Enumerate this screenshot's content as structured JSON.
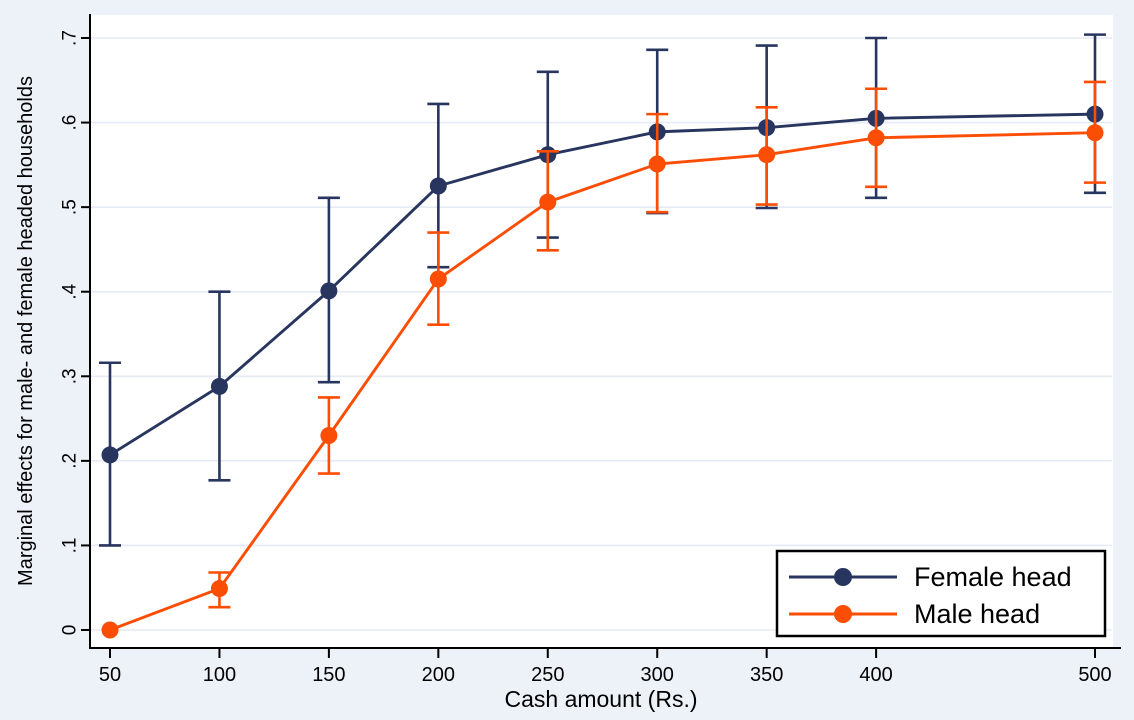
{
  "chart_data": {
    "type": "line",
    "title": "",
    "xlabel": "Cash amount (Rs.)",
    "ylabel": "Marginal effects for male- and female headed households",
    "x": [
      50,
      100,
      150,
      200,
      250,
      300,
      350,
      400,
      500
    ],
    "x_tick_labels": [
      "50",
      "100",
      "150",
      "200",
      "250",
      "300",
      "350",
      "400",
      "500"
    ],
    "y_ticks": [
      0,
      0.1,
      0.2,
      0.3,
      0.4,
      0.5,
      0.6,
      0.7
    ],
    "y_tick_labels": [
      "0",
      ".1",
      ".2",
      ".3",
      ".4",
      ".5",
      ".6",
      ".7"
    ],
    "xlim": [
      41,
      508
    ],
    "ylim": [
      0,
      0.72
    ],
    "grid": true,
    "legend_position": "bottom-right-inside",
    "error_bars": true,
    "series": [
      {
        "name": "Female head",
        "color": "#28355f",
        "values": [
          0.207,
          0.288,
          0.401,
          0.525,
          0.562,
          0.589,
          0.594,
          0.605,
          0.61
        ],
        "ci_low": [
          0.1,
          0.177,
          0.293,
          0.429,
          0.464,
          0.493,
          0.499,
          0.511,
          0.517
        ],
        "ci_high": [
          0.316,
          0.4,
          0.511,
          0.622,
          0.66,
          0.686,
          0.691,
          0.7,
          0.704
        ]
      },
      {
        "name": "Male head",
        "color": "#fb4e04",
        "values": [
          0.0,
          0.049,
          0.23,
          0.415,
          0.506,
          0.551,
          0.562,
          0.582,
          0.588
        ],
        "ci_low": [
          0.0,
          0.027,
          0.185,
          0.361,
          0.449,
          0.494,
          0.503,
          0.524,
          0.529
        ],
        "ci_high": [
          0.0,
          0.068,
          0.275,
          0.47,
          0.566,
          0.61,
          0.618,
          0.64,
          0.648
        ]
      }
    ],
    "colors": {
      "background": "#edf1f8",
      "plot_background": "#ffffff",
      "grid": "#e5eaf4",
      "axis": "#000000"
    }
  }
}
